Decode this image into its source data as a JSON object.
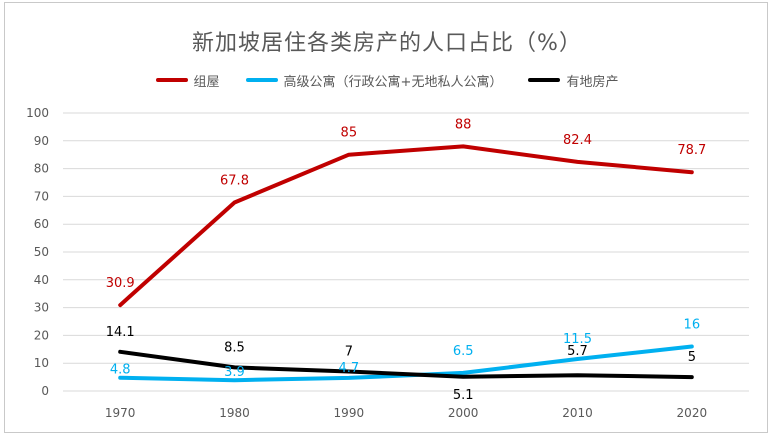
{
  "chart_data": {
    "type": "line",
    "title": "新加坡居住各类房产的人口占比（%）",
    "categories": [
      "1970",
      "1980",
      "1990",
      "2000",
      "2010",
      "2020"
    ],
    "ylim": [
      0,
      100
    ],
    "yticks": [
      0,
      10,
      20,
      30,
      40,
      50,
      60,
      70,
      80,
      90,
      100
    ],
    "grid": true,
    "legend_position": "top",
    "series": [
      {
        "name": "组屋",
        "color": "#C00000",
        "values": [
          30.9,
          67.8,
          85,
          88,
          82.4,
          78.7
        ],
        "labels": [
          "30.9",
          "67.8",
          "85",
          "88",
          "82.4",
          "78.7"
        ]
      },
      {
        "name": "高级公寓（行政公寓+无地私人公寓）",
        "color": "#00B0F0",
        "values": [
          4.8,
          3.9,
          4.7,
          6.5,
          11.5,
          16
        ],
        "labels": [
          "4.8",
          "3.9",
          "4.7",
          "6.5",
          "11.5",
          "16"
        ]
      },
      {
        "name": "有地房产",
        "color": "#000000",
        "values": [
          14.1,
          8.5,
          7,
          5.1,
          5.7,
          5
        ],
        "labels": [
          "14.1",
          "8.5",
          "7",
          "5.1",
          "5.7",
          "5"
        ]
      }
    ]
  }
}
